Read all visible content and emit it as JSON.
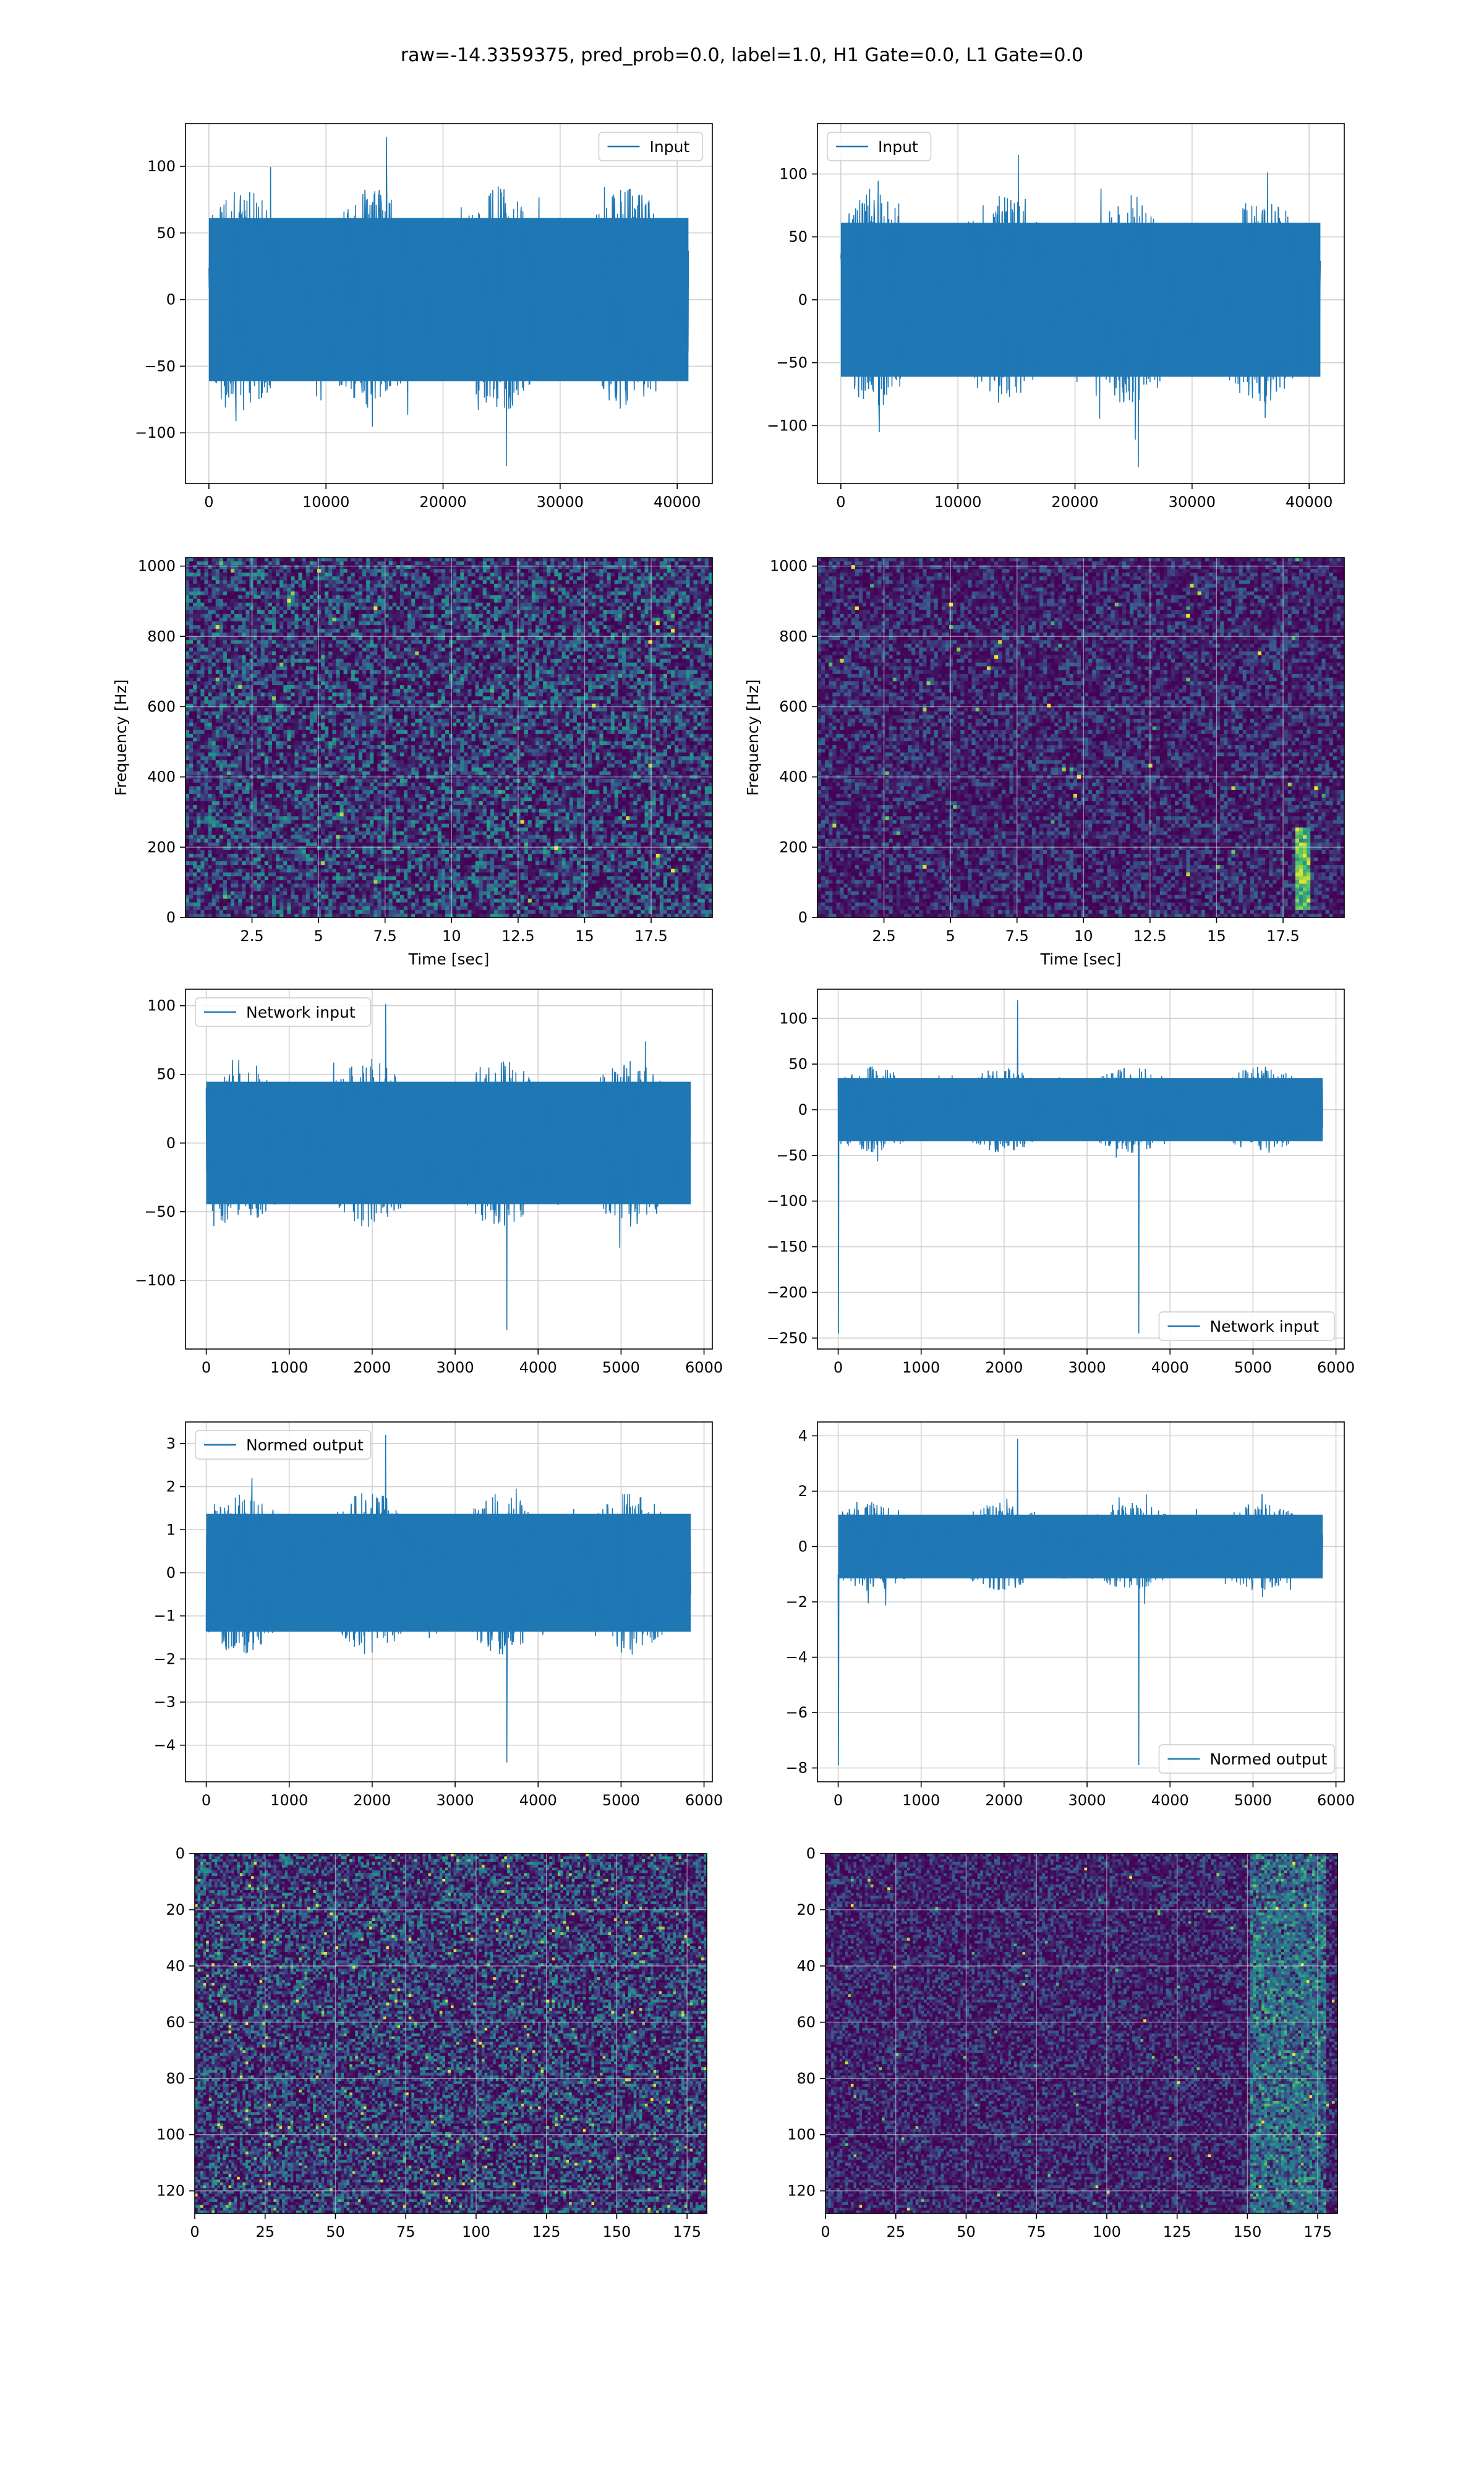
{
  "suptitle": "raw=-14.3359375, pred_prob=0.0, label=1.0, H1 Gate=0.0, L1 Gate=0.0",
  "colors": {
    "line": "#1f77b4",
    "grid": "#d0d0d0",
    "spine": "#000000",
    "viridis_low": "#440154",
    "viridis_mid": "#21918c",
    "viridis_high": "#fde725"
  },
  "chart_data": [
    {
      "type": "line",
      "row": 1,
      "col": 1,
      "legend": [
        "Input"
      ],
      "legend_loc": "upper right",
      "xlim": [
        -2000,
        43000
      ],
      "ylim": [
        -138,
        132
      ],
      "xticks": [
        0,
        10000,
        20000,
        30000,
        40000
      ],
      "yticks": [
        -100,
        -50,
        0,
        50,
        100
      ],
      "n_samples": 40960,
      "x_end": 40960,
      "envelope": [
        -85,
        85
      ],
      "min": -125,
      "max": 122,
      "grid": true
    },
    {
      "type": "line",
      "row": 1,
      "col": 2,
      "legend": [
        "Input"
      ],
      "legend_loc": "upper left",
      "xlim": [
        -2000,
        43000
      ],
      "ylim": [
        -146,
        140
      ],
      "xticks": [
        0,
        10000,
        20000,
        30000,
        40000
      ],
      "yticks": [
        -100,
        -50,
        0,
        50,
        100
      ],
      "n_samples": 40960,
      "x_end": 40960,
      "envelope": [
        -85,
        85
      ],
      "min": -133,
      "max": 115,
      "grid": true
    },
    {
      "type": "heatmap",
      "row": 2,
      "col": 1,
      "xlabel": "Time [sec]",
      "ylabel": "Frequency [Hz]",
      "xlim": [
        0,
        19.8
      ],
      "ylim": [
        0,
        1024
      ],
      "xticks": [
        2.5,
        5.0,
        7.5,
        10.0,
        12.5,
        15.0,
        17.5
      ],
      "yticks": [
        0,
        200,
        400,
        600,
        800,
        1000
      ],
      "colormap": "viridis",
      "grid": true,
      "notable": "scattered bright specks"
    },
    {
      "type": "heatmap",
      "row": 2,
      "col": 2,
      "xlabel": "Time [sec]",
      "ylabel": "Frequency [Hz]",
      "xlim": [
        0,
        19.8
      ],
      "ylim": [
        0,
        1024
      ],
      "xticks": [
        2.5,
        5.0,
        7.5,
        10.0,
        12.5,
        15.0,
        17.5
      ],
      "yticks": [
        0,
        200,
        400,
        600,
        800,
        1000
      ],
      "colormap": "viridis",
      "grid": true,
      "notable": "bright vertical streak near t=18.2 s, 30–250 Hz"
    },
    {
      "type": "line",
      "row": 3,
      "col": 1,
      "legend": [
        "Network input"
      ],
      "legend_loc": "upper left",
      "xlim": [
        -250,
        6100
      ],
      "ylim": [
        -150,
        112
      ],
      "xticks": [
        0,
        1000,
        2000,
        3000,
        4000,
        5000,
        6000
      ],
      "yticks": [
        -100,
        -50,
        0,
        50,
        100
      ],
      "n_samples": 5840,
      "x_end": 5840,
      "envelope": [
        -62,
        62
      ],
      "min": -136,
      "max": 101,
      "grid": true
    },
    {
      "type": "line",
      "row": 3,
      "col": 2,
      "legend": [
        "Network input"
      ],
      "legend_loc": "lower right",
      "xlim": [
        -250,
        6100
      ],
      "ylim": [
        -262,
        132
      ],
      "xticks": [
        0,
        1000,
        2000,
        3000,
        4000,
        5000,
        6000
      ],
      "yticks": [
        -250,
        -200,
        -150,
        -100,
        -50,
        0,
        50,
        100
      ],
      "n_samples": 5840,
      "x_end": 5840,
      "envelope": [
        -48,
        48
      ],
      "min": -245,
      "max": 120,
      "grid": true
    },
    {
      "type": "line",
      "row": 4,
      "col": 1,
      "legend": [
        "Normed output"
      ],
      "legend_loc": "upper left",
      "xlim": [
        -250,
        6100
      ],
      "ylim": [
        -4.85,
        3.5
      ],
      "xticks": [
        0,
        1000,
        2000,
        3000,
        4000,
        5000,
        6000
      ],
      "yticks": [
        -4,
        -3,
        -2,
        -1,
        0,
        1,
        2,
        3
      ],
      "n_samples": 5840,
      "x_end": 5840,
      "envelope": [
        -1.9,
        1.9
      ],
      "min": -4.4,
      "max": 3.2,
      "grid": true
    },
    {
      "type": "line",
      "row": 4,
      "col": 2,
      "legend": [
        "Normed output"
      ],
      "legend_loc": "lower right",
      "xlim": [
        -250,
        6100
      ],
      "ylim": [
        -8.5,
        4.5
      ],
      "xticks": [
        0,
        1000,
        2000,
        3000,
        4000,
        5000,
        6000
      ],
      "yticks": [
        -8,
        -6,
        -4,
        -2,
        0,
        2,
        4
      ],
      "n_samples": 5840,
      "x_end": 5840,
      "envelope": [
        -1.6,
        1.6
      ],
      "min": -7.9,
      "max": 3.9,
      "grid": true
    },
    {
      "type": "heatmap",
      "row": 5,
      "col": 1,
      "xlim": [
        0,
        182
      ],
      "ylim": [
        128,
        0
      ],
      "xticks": [
        0,
        25,
        50,
        75,
        100,
        125,
        150,
        175
      ],
      "yticks": [
        0,
        20,
        40,
        60,
        80,
        100,
        120
      ],
      "colormap": "viridis",
      "grid": true,
      "notable": "speckled texture throughout"
    },
    {
      "type": "heatmap",
      "row": 5,
      "col": 2,
      "xlim": [
        0,
        182
      ],
      "ylim": [
        128,
        0
      ],
      "xticks": [
        0,
        25,
        50,
        75,
        100,
        125,
        150,
        175
      ],
      "yticks": [
        0,
        20,
        40,
        60,
        80,
        100,
        120
      ],
      "colormap": "viridis",
      "grid": true,
      "notable": "brighter band at columns 150–175"
    }
  ]
}
